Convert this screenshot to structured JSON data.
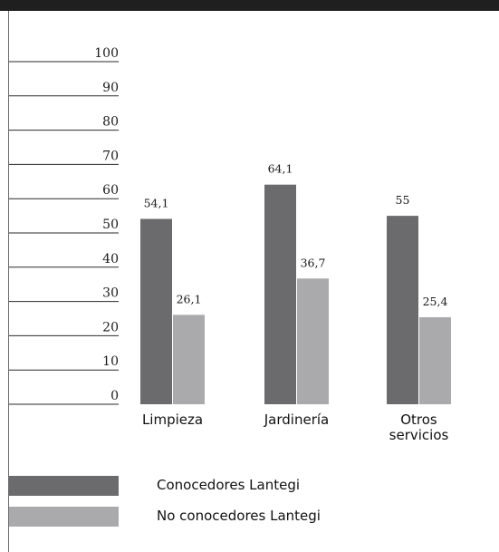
{
  "chart_data": {
    "type": "bar",
    "title": "",
    "xlabel": "",
    "ylabel": "",
    "ylim": [
      0,
      100
    ],
    "yticks": [
      0,
      10,
      20,
      30,
      40,
      50,
      60,
      70,
      80,
      90,
      100
    ],
    "categories": [
      {
        "label": "Limpieza",
        "lines": [
          "Limpieza"
        ]
      },
      {
        "label": "Jardinería",
        "lines": [
          "Jardinería"
        ]
      },
      {
        "label": "Otros servicios",
        "lines": [
          "Otros",
          "servicios"
        ]
      }
    ],
    "series": [
      {
        "name": "Conocedores Lantegi",
        "color": "#6b6b6d",
        "values": [
          54.1,
          64.1,
          55
        ],
        "labels": [
          "54,1",
          "64,1",
          "55"
        ]
      },
      {
        "name": "No conocedores Lantegi",
        "color": "#aaaaac",
        "values": [
          26.1,
          36.7,
          25.4
        ],
        "labels": [
          "26,1",
          "36,7",
          "25,4"
        ]
      }
    ],
    "legend_position": "bottom-left",
    "grid": false
  }
}
